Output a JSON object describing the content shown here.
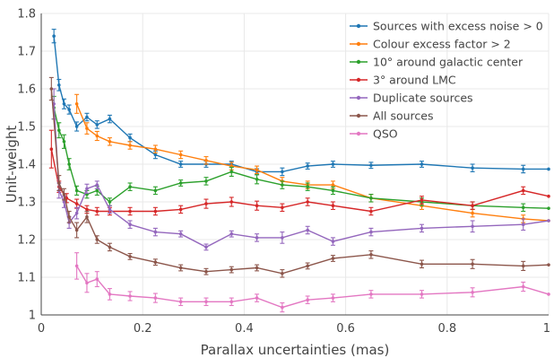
{
  "chart_data": {
    "type": "line",
    "title": "",
    "xlabel": "Parallax uncertainties (mas)",
    "ylabel": "Unit-weight",
    "xlim": [
      0,
      1
    ],
    "ylim": [
      1,
      1.8
    ],
    "x_ticks": [
      0,
      0.2,
      0.4,
      0.6,
      0.8,
      1
    ],
    "x_tick_labels": [
      "0",
      "0.2",
      "0.4",
      "0.6",
      "0.8",
      "1"
    ],
    "y_ticks": [
      1,
      1.1,
      1.2,
      1.3,
      1.4,
      1.5,
      1.6,
      1.7,
      1.8
    ],
    "y_tick_labels": [
      "1",
      "1.1",
      "1.2",
      "1.3",
      "1.4",
      "1.5",
      "1.6",
      "1.7",
      "1.8"
    ],
    "grid": true,
    "legend_position": "top-right",
    "series": [
      {
        "name": "Sources with excess noise > 0",
        "color": "#1f77b4",
        "x": [
          0.025,
          0.035,
          0.045,
          0.055,
          0.07,
          0.09,
          0.11,
          0.135,
          0.175,
          0.225,
          0.275,
          0.325,
          0.375,
          0.425,
          0.475,
          0.525,
          0.575,
          0.65,
          0.75,
          0.85,
          0.95,
          1.0
        ],
        "y": [
          1.74,
          1.61,
          1.56,
          1.545,
          1.5,
          1.525,
          1.505,
          1.52,
          1.47,
          1.425,
          1.4,
          1.4,
          1.4,
          1.38,
          1.38,
          1.395,
          1.4,
          1.397,
          1.4,
          1.39,
          1.387,
          1.387
        ],
        "err": [
          0.018,
          0.015,
          0.013,
          0.012,
          0.012,
          0.01,
          0.01,
          0.01,
          0.01,
          0.01,
          0.008,
          0.008,
          0.008,
          0.008,
          0.01,
          0.008,
          0.008,
          0.008,
          0.008,
          0.01,
          0.01,
          0
        ]
      },
      {
        "name": "Colour excess factor > 2",
        "color": "#ff7f0e",
        "x": [
          0.07,
          0.09,
          0.11,
          0.135,
          0.175,
          0.225,
          0.275,
          0.325,
          0.375,
          0.425,
          0.475,
          0.525,
          0.575,
          0.65,
          0.75,
          0.85,
          0.95,
          1.0
        ],
        "y": [
          1.56,
          1.495,
          1.475,
          1.46,
          1.45,
          1.44,
          1.425,
          1.41,
          1.395,
          1.385,
          1.355,
          1.345,
          1.345,
          1.31,
          1.29,
          1.27,
          1.255,
          1.25
        ],
        "err": [
          0.025,
          0.015,
          0.012,
          0.01,
          0.01,
          0.01,
          0.01,
          0.01,
          0.01,
          0.01,
          0.01,
          0.01,
          0.01,
          0.01,
          0.01,
          0.01,
          0.01,
          0
        ]
      },
      {
        "name": "10° around galactic center",
        "color": "#2ca02c",
        "x": [
          0.025,
          0.035,
          0.045,
          0.055,
          0.07,
          0.09,
          0.11,
          0.135,
          0.175,
          0.225,
          0.275,
          0.325,
          0.375,
          0.425,
          0.475,
          0.525,
          0.575,
          0.65,
          0.75,
          0.85,
          0.95,
          1.0
        ],
        "y": [
          1.55,
          1.49,
          1.46,
          1.4,
          1.33,
          1.32,
          1.33,
          1.3,
          1.34,
          1.33,
          1.35,
          1.355,
          1.38,
          1.36,
          1.345,
          1.34,
          1.33,
          1.31,
          1.3,
          1.29,
          1.285,
          1.283
        ],
        "err": [
          0.03,
          0.02,
          0.018,
          0.015,
          0.012,
          0.01,
          0.012,
          0.01,
          0.01,
          0.01,
          0.008,
          0.01,
          0.012,
          0.012,
          0.01,
          0.01,
          0.01,
          0.01,
          0.01,
          0.01,
          0.01,
          0
        ]
      },
      {
        "name": "3° around LMC",
        "color": "#d62728",
        "x": [
          0.02,
          0.035,
          0.05,
          0.07,
          0.09,
          0.11,
          0.135,
          0.175,
          0.225,
          0.275,
          0.325,
          0.375,
          0.425,
          0.475,
          0.525,
          0.575,
          0.65,
          0.75,
          0.85,
          0.95,
          1.0
        ],
        "y": [
          1.44,
          1.34,
          1.31,
          1.295,
          1.28,
          1.275,
          1.275,
          1.275,
          1.275,
          1.28,
          1.295,
          1.3,
          1.29,
          1.285,
          1.3,
          1.29,
          1.275,
          1.305,
          1.29,
          1.33,
          1.315
        ],
        "err": [
          0.05,
          0.015,
          0.012,
          0.012,
          0.01,
          0.01,
          0.01,
          0.01,
          0.01,
          0.01,
          0.012,
          0.012,
          0.012,
          0.01,
          0.01,
          0.01,
          0.01,
          0.01,
          0.01,
          0.01,
          0
        ]
      },
      {
        "name": "Duplicate sources",
        "color": "#9467bd",
        "x": [
          0.025,
          0.035,
          0.045,
          0.055,
          0.07,
          0.09,
          0.11,
          0.135,
          0.175,
          0.225,
          0.275,
          0.325,
          0.375,
          0.425,
          0.475,
          0.525,
          0.575,
          0.65,
          0.75,
          0.85,
          0.95,
          1.0
        ],
        "y": [
          1.56,
          1.33,
          1.3,
          1.245,
          1.27,
          1.335,
          1.345,
          1.28,
          1.24,
          1.22,
          1.215,
          1.18,
          1.215,
          1.205,
          1.205,
          1.225,
          1.195,
          1.22,
          1.23,
          1.235,
          1.24,
          1.25
        ],
        "err": [
          0.04,
          0.02,
          0.015,
          0.015,
          0.015,
          0.012,
          0.01,
          0.01,
          0.01,
          0.01,
          0.008,
          0.008,
          0.008,
          0.01,
          0.015,
          0.01,
          0.01,
          0.01,
          0.01,
          0.015,
          0.015,
          0
        ]
      },
      {
        "name": "All sources",
        "color": "#8c564b",
        "x": [
          0.02,
          0.035,
          0.045,
          0.055,
          0.07,
          0.09,
          0.11,
          0.135,
          0.175,
          0.225,
          0.275,
          0.325,
          0.375,
          0.425,
          0.475,
          0.525,
          0.575,
          0.65,
          0.75,
          0.85,
          0.95,
          1.0
        ],
        "y": [
          1.6,
          1.35,
          1.32,
          1.26,
          1.225,
          1.26,
          1.2,
          1.18,
          1.155,
          1.14,
          1.125,
          1.115,
          1.12,
          1.125,
          1.11,
          1.13,
          1.15,
          1.16,
          1.135,
          1.135,
          1.13,
          1.133
        ],
        "err": [
          0.03,
          0.02,
          0.015,
          0.015,
          0.02,
          0.015,
          0.01,
          0.01,
          0.008,
          0.008,
          0.008,
          0.008,
          0.008,
          0.008,
          0.01,
          0.008,
          0.008,
          0.01,
          0.01,
          0.012,
          0.012,
          0
        ]
      },
      {
        "name": "QSO",
        "color": "#e377c2",
        "x": [
          0.07,
          0.09,
          0.11,
          0.135,
          0.175,
          0.225,
          0.275,
          0.325,
          0.375,
          0.425,
          0.475,
          0.525,
          0.575,
          0.65,
          0.75,
          0.85,
          0.95,
          1.0
        ],
        "y": [
          1.13,
          1.085,
          1.095,
          1.055,
          1.05,
          1.045,
          1.035,
          1.035,
          1.035,
          1.045,
          1.02,
          1.04,
          1.045,
          1.055,
          1.055,
          1.06,
          1.075,
          1.055
        ],
        "err": [
          0.035,
          0.025,
          0.02,
          0.015,
          0.012,
          0.012,
          0.01,
          0.01,
          0.01,
          0.01,
          0.012,
          0.01,
          0.01,
          0.01,
          0.01,
          0.012,
          0.012,
          0
        ]
      }
    ]
  }
}
